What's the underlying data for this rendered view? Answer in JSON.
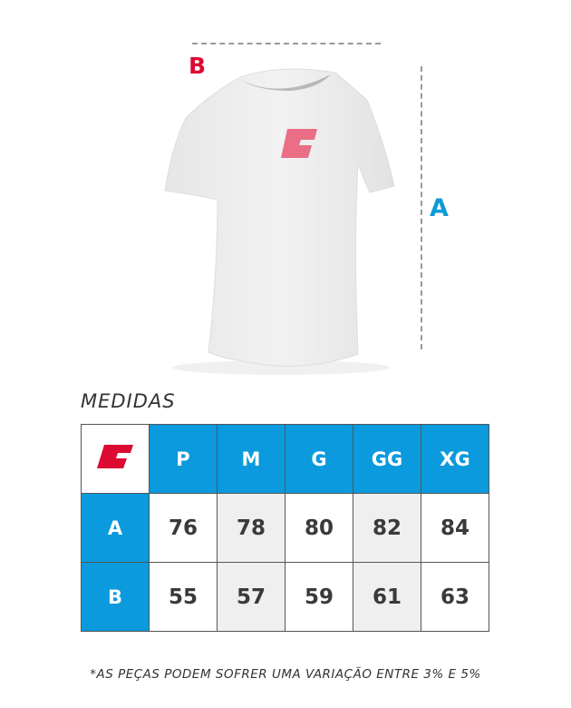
{
  "labels": {
    "b": "B",
    "a": "A"
  },
  "title": "MEDIDAS",
  "table": {
    "headers": [
      "P",
      "M",
      "G",
      "GG",
      "XG"
    ],
    "rows": [
      {
        "label": "A",
        "values": [
          "76",
          "78",
          "80",
          "82",
          "84"
        ]
      },
      {
        "label": "B",
        "values": [
          "55",
          "57",
          "59",
          "61",
          "63"
        ]
      }
    ]
  },
  "note": "*AS PEÇAS PODEM SOFRER UMA VARIAÇÃO ENTRE 3% E 5%",
  "colors": {
    "brand_red": "#dc0a32",
    "header_blue": "#0a9add"
  }
}
